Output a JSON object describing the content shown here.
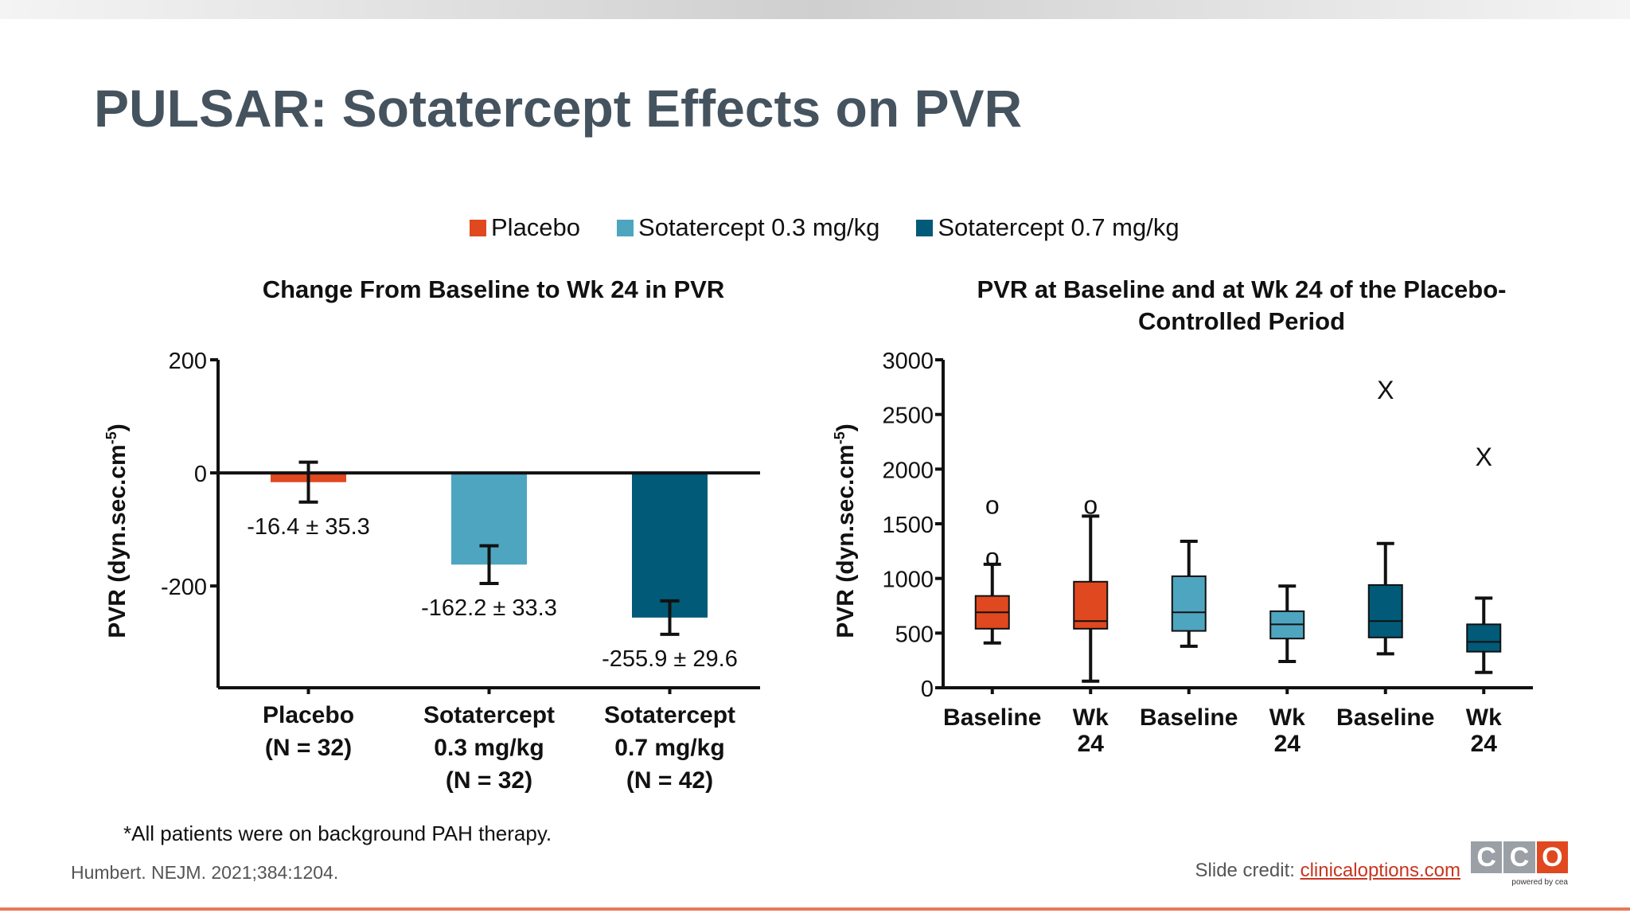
{
  "title": "PULSAR: Sotatercept Effects on PVR",
  "colors": {
    "placebo": "#e0481f",
    "sota03": "#4ea5c0",
    "sota07": "#015a78",
    "title": "#45535f"
  },
  "legend": [
    {
      "label": "Placebo",
      "color": "#e0481f"
    },
    {
      "label": "Sotatercept 0.3 mg/kg",
      "color": "#4ea5c0"
    },
    {
      "label": "Sotatercept 0.7 mg/kg",
      "color": "#015a78"
    }
  ],
  "chart_data": [
    {
      "type": "bar",
      "title": "Change From Baseline to Wk 24 in PVR",
      "ylabel": "PVR (dyn.sec.cm",
      "ylabel_sup": "-5",
      "ylabel_close": ")",
      "ylim": [
        -380,
        200
      ],
      "yticks": [
        200,
        0,
        -200
      ],
      "categories": [
        [
          "Placebo",
          "(N = 32)"
        ],
        [
          "Sotatercept",
          "0.3 mg/kg",
          "(N = 32)"
        ],
        [
          "Sotatercept",
          "0.7 mg/kg",
          "(N = 42)"
        ]
      ],
      "values": [
        -16.4,
        -162.2,
        -255.9
      ],
      "errors": [
        35.3,
        33.3,
        29.6
      ],
      "data_labels": [
        "-16.4 ± 35.3",
        "-162.2 ± 33.3",
        "-255.9 ± 29.6"
      ],
      "colors": [
        "#e0481f",
        "#4ea5c0",
        "#015a78"
      ]
    },
    {
      "type": "box",
      "title": [
        "PVR at Baseline and at Wk 24 of the Placebo-",
        "Controlled Period"
      ],
      "ylabel": "PVR (dyn.sec.cm",
      "ylabel_sup": "-5",
      "ylabel_close": ")",
      "ylim": [
        0,
        3000
      ],
      "yticks": [
        0,
        500,
        1000,
        1500,
        2000,
        2500,
        3000
      ],
      "categories": [
        [
          "Baseline"
        ],
        [
          "Wk",
          "24"
        ],
        [
          "Baseline"
        ],
        [
          "Wk",
          "24"
        ],
        [
          "Baseline"
        ],
        [
          "Wk",
          "24"
        ]
      ],
      "boxes": [
        {
          "group": "placebo",
          "min": 410,
          "q1": 540,
          "median": 690,
          "q3": 840,
          "max": 1130,
          "outliers": [
            {
              "value": 1200,
              "marker": "o"
            },
            {
              "value": 1680,
              "marker": "o"
            }
          ]
        },
        {
          "group": "placebo",
          "min": 60,
          "q1": 540,
          "median": 610,
          "q3": 970,
          "max": 1570,
          "outliers": [
            {
              "value": 1680,
              "marker": "o"
            }
          ]
        },
        {
          "group": "sota03",
          "min": 380,
          "q1": 520,
          "median": 690,
          "q3": 1020,
          "max": 1340,
          "outliers": []
        },
        {
          "group": "sota03",
          "min": 240,
          "q1": 450,
          "median": 580,
          "q3": 700,
          "max": 930,
          "outliers": []
        },
        {
          "group": "sota07",
          "min": 310,
          "q1": 460,
          "median": 610,
          "q3": 940,
          "max": 1320,
          "outliers": [
            {
              "value": 2730,
              "marker": "X"
            }
          ]
        },
        {
          "group": "sota07",
          "min": 140,
          "q1": 330,
          "median": 420,
          "q3": 580,
          "max": 820,
          "outliers": [
            {
              "value": 2120,
              "marker": "X"
            }
          ]
        }
      ]
    }
  ],
  "footnote": "*All patients were on background PAH therapy.",
  "citation": "Humbert. NEJM. 2021;384:1204.",
  "credit": {
    "label": "Slide credit: ",
    "link": "clinicaloptions.com"
  },
  "logo": {
    "letters": [
      "C",
      "C",
      "O"
    ],
    "colors": [
      "#9aa0a6",
      "#9aa0a6",
      "#e0481f"
    ],
    "sub": "powered by cea"
  }
}
